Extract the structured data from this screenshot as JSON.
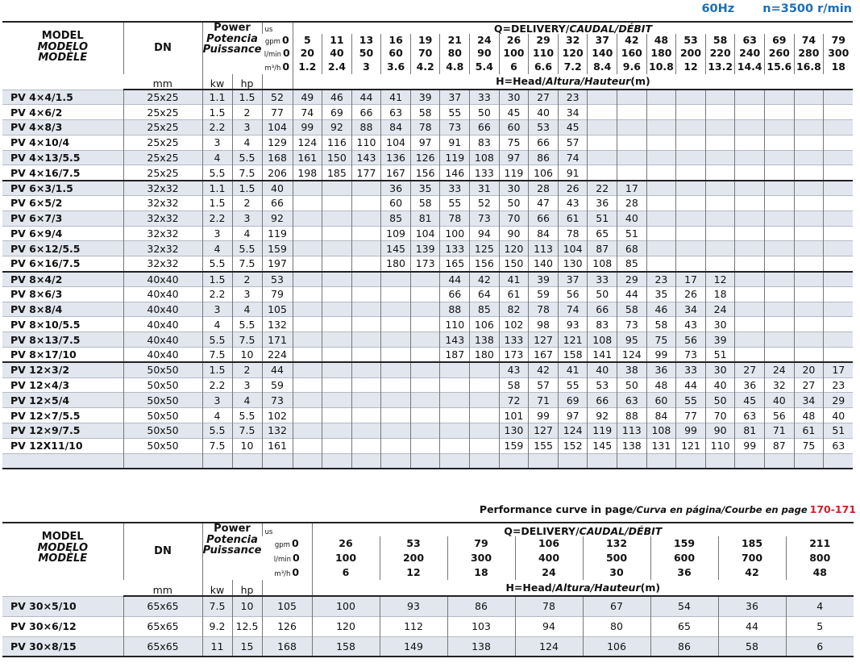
{
  "header": {
    "frequency": "60Hz",
    "speed": "n=3500 r/min"
  },
  "table1": {
    "model_header": [
      "MODEL",
      "MODELO",
      "MODÈLE"
    ],
    "dn": "DN",
    "dn_unit": "mm",
    "power": [
      "Power",
      "Potencia",
      "Puissance"
    ],
    "kw": "kw",
    "hp": "hp",
    "units": {
      "us": "us",
      "gpm": "gpm",
      "lpm": "l/min",
      "m3h": "m³/h"
    },
    "delivery": [
      "Q=DELIVERY/",
      "CAUDAL/DÉBIT"
    ],
    "head": [
      "H=Head/",
      "Altura/Hauteur",
      "(m)"
    ],
    "gpm": [
      0,
      5,
      11,
      13,
      16,
      19,
      21,
      24,
      26,
      29,
      32,
      37,
      42,
      48,
      53,
      58,
      63,
      69,
      74,
      79
    ],
    "lpm": [
      0,
      20,
      40,
      50,
      60,
      70,
      80,
      90,
      100,
      110,
      120,
      140,
      160,
      180,
      200,
      220,
      240,
      260,
      280,
      300
    ],
    "m3h": [
      0,
      1.2,
      2.4,
      3,
      3.6,
      4.2,
      4.8,
      5.4,
      6,
      6.6,
      7.2,
      8.4,
      9.6,
      10.8,
      12,
      13.2,
      14.4,
      15.6,
      16.8,
      18
    ],
    "rows": [
      {
        "model": "PV 4×4/1.5",
        "dn": "25x25",
        "kw": 1.1,
        "hp": 1.5,
        "heads": [
          52,
          49,
          46,
          44,
          41,
          39,
          37,
          33,
          30,
          27,
          23,
          null,
          null,
          null,
          null,
          null,
          null,
          null,
          null,
          null
        ]
      },
      {
        "model": "PV 4×6/2",
        "dn": "25x25",
        "kw": 1.5,
        "hp": 2,
        "heads": [
          77,
          74,
          69,
          66,
          63,
          58,
          55,
          50,
          45,
          40,
          34,
          null,
          null,
          null,
          null,
          null,
          null,
          null,
          null,
          null
        ]
      },
      {
        "model": "PV 4×8/3",
        "dn": "25x25",
        "kw": 2.2,
        "hp": 3,
        "heads": [
          104,
          99,
          92,
          88,
          84,
          78,
          73,
          66,
          60,
          53,
          45,
          null,
          null,
          null,
          null,
          null,
          null,
          null,
          null,
          null
        ]
      },
      {
        "model": "PV 4×10/4",
        "dn": "25x25",
        "kw": 3,
        "hp": 4,
        "heads": [
          129,
          124,
          116,
          110,
          104,
          97,
          91,
          83,
          75,
          66,
          57,
          null,
          null,
          null,
          null,
          null,
          null,
          null,
          null,
          null
        ]
      },
      {
        "model": "PV 4×13/5.5",
        "dn": "25x25",
        "kw": 4,
        "hp": 5.5,
        "heads": [
          168,
          161,
          150,
          143,
          136,
          126,
          119,
          108,
          97,
          86,
          74,
          null,
          null,
          null,
          null,
          null,
          null,
          null,
          null,
          null
        ]
      },
      {
        "model": "PV 4×16/7.5",
        "dn": "25x25",
        "kw": 5.5,
        "hp": 7.5,
        "heads": [
          206,
          198,
          185,
          177,
          167,
          156,
          146,
          133,
          119,
          106,
          91,
          null,
          null,
          null,
          null,
          null,
          null,
          null,
          null,
          null
        ]
      },
      {
        "model": "PV 6×3/1.5",
        "dn": "32x32",
        "kw": 1.1,
        "hp": 1.5,
        "heads": [
          40,
          null,
          null,
          null,
          36,
          35,
          33,
          31,
          30,
          28,
          26,
          22,
          17,
          null,
          null,
          null,
          null,
          null,
          null,
          null
        ]
      },
      {
        "model": "PV 6×5/2",
        "dn": "32x32",
        "kw": 1.5,
        "hp": 2,
        "heads": [
          66,
          null,
          null,
          null,
          60,
          58,
          55,
          52,
          50,
          47,
          43,
          36,
          28,
          null,
          null,
          null,
          null,
          null,
          null,
          null
        ]
      },
      {
        "model": "PV 6×7/3",
        "dn": "32x32",
        "kw": 2.2,
        "hp": 3,
        "heads": [
          92,
          null,
          null,
          null,
          85,
          81,
          78,
          73,
          70,
          66,
          61,
          51,
          40,
          null,
          null,
          null,
          null,
          null,
          null,
          null
        ]
      },
      {
        "model": "PV 6×9/4",
        "dn": "32x32",
        "kw": 3,
        "hp": 4,
        "heads": [
          119,
          null,
          null,
          null,
          109,
          104,
          100,
          94,
          90,
          84,
          78,
          65,
          51,
          null,
          null,
          null,
          null,
          null,
          null,
          null
        ]
      },
      {
        "model": "PV 6×12/5.5",
        "dn": "32x32",
        "kw": 4,
        "hp": 5.5,
        "heads": [
          159,
          null,
          null,
          null,
          145,
          139,
          133,
          125,
          120,
          113,
          104,
          87,
          68,
          null,
          null,
          null,
          null,
          null,
          null,
          null
        ]
      },
      {
        "model": "PV 6×16/7.5",
        "dn": "32x32",
        "kw": 5.5,
        "hp": 7.5,
        "heads": [
          197,
          null,
          null,
          null,
          180,
          173,
          165,
          156,
          150,
          140,
          130,
          108,
          85,
          null,
          null,
          null,
          null,
          null,
          null,
          null
        ]
      },
      {
        "model": "PV 8×4/2",
        "dn": "40x40",
        "kw": 1.5,
        "hp": 2,
        "heads": [
          53,
          null,
          null,
          null,
          null,
          null,
          44,
          42,
          41,
          39,
          37,
          33,
          29,
          23,
          17,
          12,
          null,
          null,
          null,
          null
        ]
      },
      {
        "model": "PV 8×6/3",
        "dn": "40x40",
        "kw": 2.2,
        "hp": 3,
        "heads": [
          79,
          null,
          null,
          null,
          null,
          null,
          66,
          64,
          61,
          59,
          56,
          50,
          44,
          35,
          26,
          18,
          null,
          null,
          null,
          null
        ]
      },
      {
        "model": "PV 8×8/4",
        "dn": "40x40",
        "kw": 3,
        "hp": 4,
        "heads": [
          105,
          null,
          null,
          null,
          null,
          null,
          88,
          85,
          82,
          78,
          74,
          66,
          58,
          46,
          34,
          24,
          null,
          null,
          null,
          null
        ]
      },
      {
        "model": "PV 8×10/5.5",
        "dn": "40x40",
        "kw": 4,
        "hp": 5.5,
        "heads": [
          132,
          null,
          null,
          null,
          null,
          null,
          110,
          106,
          102,
          98,
          93,
          83,
          73,
          58,
          43,
          30,
          null,
          null,
          null,
          null
        ]
      },
      {
        "model": "PV 8×13/7.5",
        "dn": "40x40",
        "kw": 5.5,
        "hp": 7.5,
        "heads": [
          171,
          null,
          null,
          null,
          null,
          null,
          143,
          138,
          133,
          127,
          121,
          108,
          95,
          75,
          56,
          39,
          null,
          null,
          null,
          null
        ]
      },
      {
        "model": "PV 8×17/10",
        "dn": "40x40",
        "kw": 7.5,
        "hp": 10,
        "heads": [
          224,
          null,
          null,
          null,
          null,
          null,
          187,
          180,
          173,
          167,
          158,
          141,
          124,
          99,
          73,
          51,
          null,
          null,
          null,
          null
        ]
      },
      {
        "model": "PV 12×3/2",
        "dn": "50x50",
        "kw": 1.5,
        "hp": 2,
        "heads": [
          44,
          null,
          null,
          null,
          null,
          null,
          null,
          null,
          43,
          42,
          41,
          40,
          38,
          36,
          33,
          30,
          27,
          24,
          20,
          17
        ]
      },
      {
        "model": "PV 12×4/3",
        "dn": "50x50",
        "kw": 2.2,
        "hp": 3,
        "heads": [
          59,
          null,
          null,
          null,
          null,
          null,
          null,
          null,
          58,
          57,
          55,
          53,
          50,
          48,
          44,
          40,
          36,
          32,
          27,
          23
        ]
      },
      {
        "model": "PV 12×5/4",
        "dn": "50x50",
        "kw": 3,
        "hp": 4,
        "heads": [
          73,
          null,
          null,
          null,
          null,
          null,
          null,
          null,
          72,
          71,
          69,
          66,
          63,
          60,
          55,
          50,
          45,
          40,
          34,
          29
        ]
      },
      {
        "model": "PV 12×7/5.5",
        "dn": "50x50",
        "kw": 4,
        "hp": 5.5,
        "heads": [
          102,
          null,
          null,
          null,
          null,
          null,
          null,
          null,
          101,
          99,
          97,
          92,
          88,
          84,
          77,
          70,
          63,
          56,
          48,
          40
        ]
      },
      {
        "model": "PV 12×9/7.5",
        "dn": "50x50",
        "kw": 5.5,
        "hp": 7.5,
        "heads": [
          132,
          null,
          null,
          null,
          null,
          null,
          null,
          null,
          130,
          127,
          124,
          119,
          113,
          108,
          99,
          90,
          81,
          71,
          61,
          51
        ]
      },
      {
        "model": "PV 12X11/10",
        "dn": "50x50",
        "kw": 7.5,
        "hp": 10,
        "heads": [
          161,
          null,
          null,
          null,
          null,
          null,
          null,
          null,
          159,
          155,
          152,
          145,
          138,
          131,
          121,
          110,
          99,
          87,
          75,
          63
        ]
      }
    ]
  },
  "note": [
    "Performance curve in page",
    "/Curva en página/Courbe en page",
    "170-171"
  ],
  "table2": {
    "model_header": [
      "MODEL",
      "MODELO",
      "MODÈLE"
    ],
    "dn": "DN",
    "dn_unit": "mm",
    "power": [
      "Power",
      "Potencia",
      "Puissance"
    ],
    "kw": "kw",
    "hp": "hp",
    "units": {
      "us": "us",
      "gpm": "gpm",
      "lpm": "l/min",
      "m3h": "m³/h"
    },
    "delivery": [
      "Q=DELIVERY/",
      "CAUDAL/DÉBIT"
    ],
    "head": [
      "H=Head/",
      "Altura/Hauteur",
      "(m)"
    ],
    "gpm": [
      0,
      26,
      53,
      79,
      106,
      132,
      159,
      185,
      211
    ],
    "lpm": [
      0,
      100,
      200,
      300,
      400,
      500,
      600,
      700,
      800
    ],
    "m3h": [
      0,
      6,
      12,
      18,
      24,
      30,
      36,
      42,
      48
    ],
    "rows": [
      {
        "model": "PV 30×5/10",
        "dn": "65x65",
        "kw": 7.5,
        "hp": 10,
        "heads": [
          105,
          100,
          93,
          86,
          78,
          67,
          54,
          36,
          4
        ]
      },
      {
        "model": "PV 30×6/12",
        "dn": "65x65",
        "kw": 9.2,
        "hp": 12.5,
        "heads": [
          126,
          120,
          112,
          103,
          94,
          80,
          65,
          44,
          5
        ]
      },
      {
        "model": "PV 30×8/15",
        "dn": "65x65",
        "kw": 11,
        "hp": 15,
        "heads": [
          168,
          158,
          149,
          138,
          124,
          106,
          86,
          58,
          6
        ]
      }
    ]
  }
}
